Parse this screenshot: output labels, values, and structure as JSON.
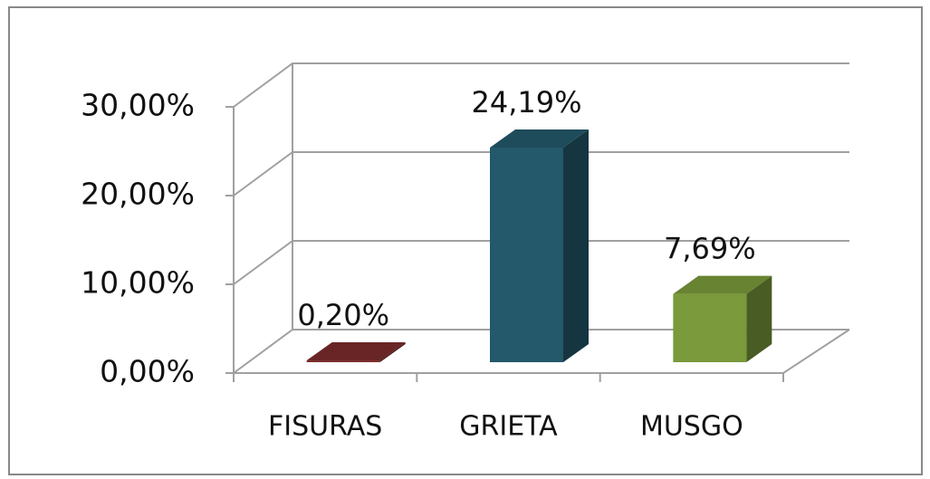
{
  "chart_data": {
    "type": "bar3d",
    "categories": [
      "FISURAS",
      "GRIETA",
      "MUSGO"
    ],
    "values": [
      0.2,
      24.19,
      7.69
    ],
    "value_labels": [
      "0,20%",
      "24,19%",
      "7,69%"
    ],
    "colors": [
      "#7b2b2b",
      "#23596a",
      "#7a9a3b"
    ],
    "ylim": [
      0,
      30
    ],
    "yticks": [
      {
        "value": 0,
        "label": "0,00%"
      },
      {
        "value": 10,
        "label": "10,00%"
      },
      {
        "value": 20,
        "label": "20,00%"
      },
      {
        "value": 30,
        "label": "30,00%"
      }
    ],
    "grid": true
  }
}
